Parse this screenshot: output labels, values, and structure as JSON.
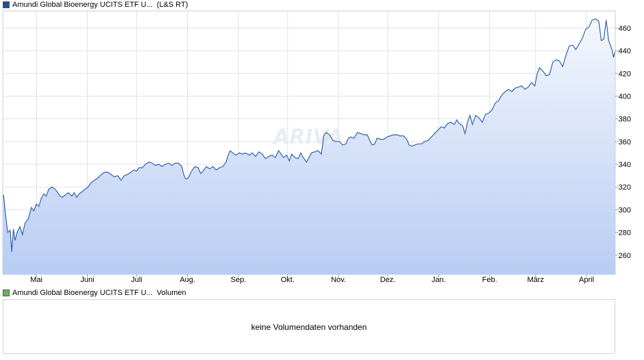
{
  "price_legend": {
    "name": "Amundi Global Bioenergy UCITS ETF U...",
    "exchange": "(L&S RT)",
    "color": "#1f4e9c"
  },
  "volume_legend": {
    "name": "Amundi Global Bioenergy UCITS ETF U...",
    "label": "Volumen",
    "color": "#5cb85c"
  },
  "volume_panel": {
    "message": "keine Volumendaten vorhanden"
  },
  "watermark": "ARIVA",
  "chart_data": {
    "type": "area",
    "title": "",
    "xlabel": "",
    "ylabel": "",
    "ylim": [
      243,
      475
    ],
    "grid": true,
    "y_axis_side": "right",
    "y_ticks": [
      260,
      280,
      300,
      320,
      340,
      360,
      380,
      400,
      420,
      440,
      460
    ],
    "x_ticks": [
      {
        "label": "Mai",
        "x": 20.5
      },
      {
        "label": "Juni",
        "x": 51.5
      },
      {
        "label": "Juli",
        "x": 81.5
      },
      {
        "label": "Aug.",
        "x": 112.5
      },
      {
        "label": "Sep.",
        "x": 143.5
      },
      {
        "label": "Okt.",
        "x": 173.5
      },
      {
        "label": "Nov.",
        "x": 204.5
      },
      {
        "label": "Dez.",
        "x": 234.5
      },
      {
        "label": "Jan.",
        "x": 265.5
      },
      {
        "label": "Feb.",
        "x": 296.5
      },
      {
        "label": "März",
        "x": 324.5
      },
      {
        "label": "April",
        "x": 355.5
      }
    ],
    "x_range": [
      0,
      373
    ],
    "line_color": "#2f62b1",
    "fill_top_color": "#f4f7fd",
    "fill_bottom_color": "#b8cdf3",
    "series": [
      {
        "points": [
          [
            0,
            311
          ],
          [
            0.5,
            313
          ],
          [
            1.5,
            298
          ],
          [
            3,
            280
          ],
          [
            4.5,
            282
          ],
          [
            5.5,
            263
          ],
          [
            6.5,
            283
          ],
          [
            7.5,
            273
          ],
          [
            9,
            281
          ],
          [
            10.5,
            285
          ],
          [
            12,
            278
          ],
          [
            13.5,
            288
          ],
          [
            15.5,
            292
          ],
          [
            17.5,
            302
          ],
          [
            19,
            299
          ],
          [
            20.5,
            305
          ],
          [
            22,
            303
          ],
          [
            23.5,
            310
          ],
          [
            25,
            314
          ],
          [
            26.5,
            312
          ],
          [
            28,
            318
          ],
          [
            30,
            320
          ],
          [
            32,
            318
          ],
          [
            33.5,
            315
          ],
          [
            35,
            312
          ],
          [
            36.5,
            311
          ],
          [
            38,
            313
          ],
          [
            40,
            315
          ],
          [
            42,
            312
          ],
          [
            43.5,
            315
          ],
          [
            45,
            311
          ],
          [
            46.5,
            314
          ],
          [
            48.5,
            316
          ],
          [
            50,
            318
          ],
          [
            52,
            320
          ],
          [
            54,
            324
          ],
          [
            56,
            326
          ],
          [
            58,
            328
          ],
          [
            60,
            331
          ],
          [
            62,
            333
          ],
          [
            64,
            333
          ],
          [
            66,
            331
          ],
          [
            68,
            329
          ],
          [
            70,
            330
          ],
          [
            72,
            326
          ],
          [
            74,
            330
          ],
          [
            76,
            331
          ],
          [
            78,
            333
          ],
          [
            80,
            335
          ],
          [
            81.5,
            334
          ],
          [
            83,
            337
          ],
          [
            85,
            337
          ],
          [
            87,
            340
          ],
          [
            89,
            342
          ],
          [
            91,
            341
          ],
          [
            93,
            339
          ],
          [
            95,
            340
          ],
          [
            97,
            338
          ],
          [
            99,
            340
          ],
          [
            101,
            341
          ],
          [
            103,
            339
          ],
          [
            105,
            341
          ],
          [
            107,
            341
          ],
          [
            109,
            338
          ],
          [
            110.5,
            330
          ],
          [
            111.5,
            327
          ],
          [
            113,
            328
          ],
          [
            115,
            334
          ],
          [
            117,
            338
          ],
          [
            119,
            337
          ],
          [
            120.5,
            332
          ],
          [
            122,
            334
          ],
          [
            124,
            338
          ],
          [
            126,
            336
          ],
          [
            128,
            338
          ],
          [
            130,
            335
          ],
          [
            132,
            337
          ],
          [
            134,
            338
          ],
          [
            136,
            342
          ],
          [
            137,
            347
          ],
          [
            138.5,
            352
          ],
          [
            140,
            350
          ],
          [
            142,
            348
          ],
          [
            144,
            350
          ],
          [
            146,
            349
          ],
          [
            148,
            350
          ],
          [
            150,
            348
          ],
          [
            152,
            350
          ],
          [
            154,
            347
          ],
          [
            156,
            351
          ],
          [
            158,
            349
          ],
          [
            160,
            345
          ],
          [
            162,
            347
          ],
          [
            164,
            348
          ],
          [
            166,
            346
          ],
          [
            168,
            352
          ],
          [
            169.5,
            349
          ],
          [
            171,
            346
          ],
          [
            173,
            348
          ],
          [
            174.5,
            343
          ],
          [
            176,
            349
          ],
          [
            178,
            346
          ],
          [
            180,
            345
          ],
          [
            181.5,
            350
          ],
          [
            183,
            346
          ],
          [
            185,
            342
          ],
          [
            186.5,
            346
          ],
          [
            188,
            350
          ],
          [
            190,
            351
          ],
          [
            192,
            352
          ],
          [
            194,
            349
          ],
          [
            195.5,
            365
          ],
          [
            197,
            368
          ],
          [
            199,
            366
          ],
          [
            201,
            361
          ],
          [
            203,
            360
          ],
          [
            205,
            360
          ],
          [
            207,
            357
          ],
          [
            209,
            358
          ],
          [
            210.5,
            363
          ],
          [
            212,
            364
          ],
          [
            214,
            363
          ],
          [
            216,
            368
          ],
          [
            218,
            367
          ],
          [
            220,
            366
          ],
          [
            222,
            366
          ],
          [
            223.5,
            361
          ],
          [
            225,
            357
          ],
          [
            226.5,
            358
          ],
          [
            228,
            363
          ],
          [
            230,
            362
          ],
          [
            232,
            362
          ],
          [
            234,
            364
          ],
          [
            236,
            365
          ],
          [
            238,
            366
          ],
          [
            240,
            366
          ],
          [
            242,
            365
          ],
          [
            244,
            365
          ],
          [
            246,
            362
          ],
          [
            247.5,
            357
          ],
          [
            249,
            356
          ],
          [
            251,
            357
          ],
          [
            253,
            358
          ],
          [
            255,
            358
          ],
          [
            257,
            360
          ],
          [
            259,
            361
          ],
          [
            261,
            364
          ],
          [
            263,
            367
          ],
          [
            265,
            370
          ],
          [
            267,
            373
          ],
          [
            269,
            372
          ],
          [
            271,
            376
          ],
          [
            273,
            377
          ],
          [
            275,
            375
          ],
          [
            276.5,
            379
          ],
          [
            278,
            376
          ],
          [
            280,
            374
          ],
          [
            281.5,
            367
          ],
          [
            283,
            377
          ],
          [
            284.5,
            383
          ],
          [
            286,
            375
          ],
          [
            288,
            383
          ],
          [
            290,
            381
          ],
          [
            292,
            377
          ],
          [
            294,
            384
          ],
          [
            296,
            385
          ],
          [
            298,
            388
          ],
          [
            300,
            394
          ],
          [
            302,
            396
          ],
          [
            304,
            401
          ],
          [
            306,
            404
          ],
          [
            308,
            406
          ],
          [
            310,
            404
          ],
          [
            312,
            407
          ],
          [
            314,
            408
          ],
          [
            316,
            409
          ],
          [
            318,
            406
          ],
          [
            320,
            408
          ],
          [
            322,
            412
          ],
          [
            324,
            409
          ],
          [
            325.5,
            420
          ],
          [
            327,
            425
          ],
          [
            329,
            422
          ],
          [
            331,
            418
          ],
          [
            333,
            419
          ],
          [
            335,
            430
          ],
          [
            337,
            432
          ],
          [
            339,
            431
          ],
          [
            341,
            426
          ],
          [
            343,
            436
          ],
          [
            345,
            444
          ],
          [
            347,
            445
          ],
          [
            349,
            441
          ],
          [
            351,
            446
          ],
          [
            353,
            451
          ],
          [
            355,
            459
          ],
          [
            357,
            461
          ],
          [
            359,
            467
          ],
          [
            361,
            468
          ],
          [
            363,
            466
          ],
          [
            364.5,
            449
          ],
          [
            366,
            450
          ],
          [
            367.5,
            467
          ],
          [
            369,
            449
          ],
          [
            371,
            441
          ],
          [
            372,
            434
          ],
          [
            373,
            440
          ],
          [
            373.5,
            445
          ],
          [
            375,
            444
          ]
        ]
      }
    ]
  }
}
